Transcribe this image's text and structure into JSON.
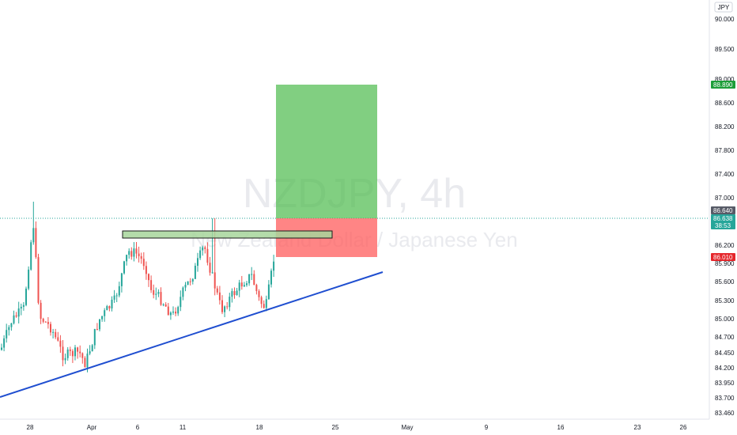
{
  "chart_data": {
    "type": "candlestick",
    "watermark_symbol": "NZDJPY, 4h",
    "watermark_description": "New Zealand Dollar / Japanese Yen",
    "currency": "JPY",
    "y_ticks": [
      "90.000",
      "89.500",
      "89.000",
      "88.600",
      "88.200",
      "87.800",
      "87.400",
      "87.000",
      "86.200",
      "85.900",
      "85.600",
      "85.300",
      "85.000",
      "84.700",
      "84.450",
      "84.200",
      "83.950",
      "83.700",
      "83.460"
    ],
    "x_ticks": [
      "28",
      "Apr",
      "6",
      "11",
      "18",
      "25",
      "May",
      "9",
      "16",
      "23",
      "26"
    ],
    "price_tags": [
      {
        "label": "88.890",
        "color": "#1e9e3a"
      },
      {
        "label": "86.640",
        "color": "#575b67"
      },
      {
        "label": "86.638",
        "color": "#26a69a"
      },
      {
        "label": "38:53",
        "color": "#26a69a"
      },
      {
        "label": "86.010",
        "color": "#e5262b"
      }
    ],
    "position": {
      "type": "long",
      "entry": 86.64,
      "target": 88.89,
      "stop": 86.01
    },
    "trendline": {
      "color": "#1f4ed0"
    },
    "resistance_zone": {
      "color": "#a7d69b"
    },
    "colors": {
      "up": "#26a69a",
      "down": "#ef5350",
      "profit": "#4cbb4c",
      "loss": "#ff5c5c"
    }
  }
}
